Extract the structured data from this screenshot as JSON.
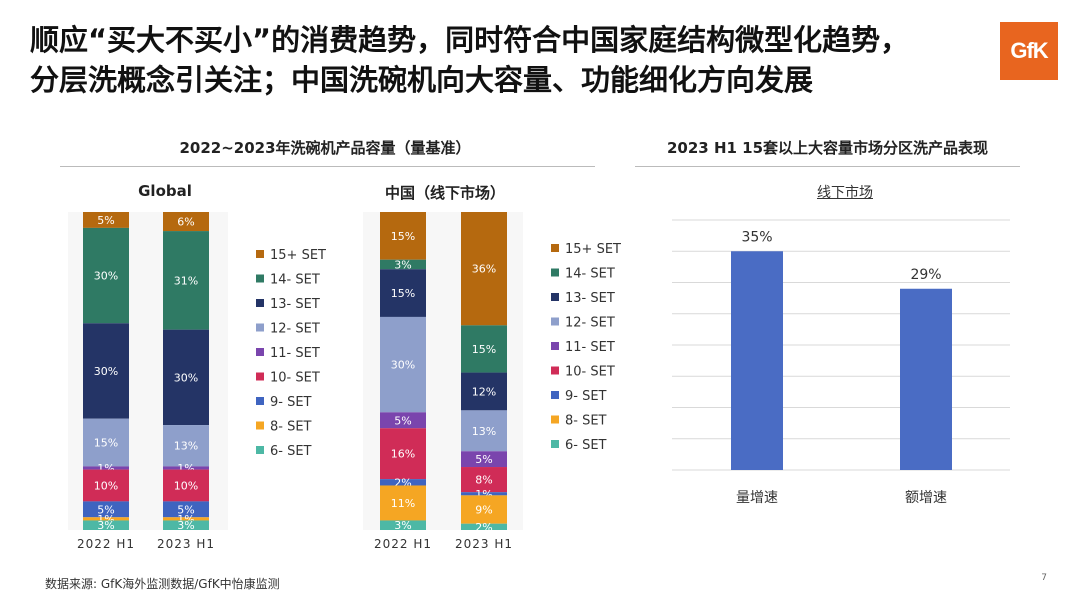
{
  "title": {
    "line1": "顺应“买大不买小”的消费趋势，同时符合中国家庭结构微型化趋势，",
    "line2": "分层洗概念引关注；中国洗碗机向大容量、功能细化方向发展"
  },
  "logo_text": "GfK",
  "left_section_title": "2022~2023年洗碗机产品容量（量基准）",
  "right_section_title": "2023 H1 15套以上大容量市场分区洗产品表现",
  "legend": [
    {
      "label": "15+ SET",
      "color": "#b5690f"
    },
    {
      "label": "14- SET",
      "color": "#2f7a64"
    },
    {
      "label": "13- SET",
      "color": "#243466"
    },
    {
      "label": "12- SET",
      "color": "#8e9fcb"
    },
    {
      "label": "11- SET",
      "color": "#7a45ad"
    },
    {
      "label": "10- SET",
      "color": "#d02c57"
    },
    {
      "label": "9- SET",
      "color": "#3f64c0"
    },
    {
      "label": "8- SET",
      "color": "#f5a623"
    },
    {
      "label": "6- SET",
      "color": "#4db8a5"
    }
  ],
  "source": "数据来源: GfK海外监测数据/GfK中怡康监测",
  "page_number": "7",
  "chart_data": [
    {
      "type": "bar",
      "stacked": true,
      "title": "Global",
      "categories": [
        "2022 H1",
        "2023 H1"
      ],
      "series": [
        {
          "name": "15+ SET",
          "values": [
            5,
            6
          ],
          "labels": [
            "5%",
            "6%"
          ]
        },
        {
          "name": "14- SET",
          "values": [
            30,
            31
          ],
          "labels": [
            "30%",
            "31%"
          ]
        },
        {
          "name": "13- SET",
          "values": [
            30,
            30
          ],
          "labels": [
            "30%",
            "30%"
          ]
        },
        {
          "name": "12- SET",
          "values": [
            15,
            13
          ],
          "labels": [
            "15%",
            "13%"
          ]
        },
        {
          "name": "11- SET",
          "values": [
            1,
            1
          ],
          "labels": [
            "1%",
            "1%"
          ]
        },
        {
          "name": "10- SET",
          "values": [
            10,
            10
          ],
          "labels": [
            "10%",
            "10%"
          ]
        },
        {
          "name": "9- SET",
          "values": [
            5,
            5
          ],
          "labels": [
            "5%",
            "5%"
          ]
        },
        {
          "name": "8- SET",
          "values": [
            1,
            1
          ],
          "labels": [
            "1%",
            "1%"
          ]
        },
        {
          "name": "6- SET",
          "values": [
            3,
            3
          ],
          "labels": [
            "3%",
            "3%"
          ]
        }
      ]
    },
    {
      "type": "bar",
      "stacked": true,
      "title": "中国（线下市场）",
      "categories": [
        "2022 H1",
        "2023 H1"
      ],
      "series": [
        {
          "name": "15+ SET",
          "values": [
            15,
            36
          ],
          "labels": [
            "15%",
            "36%"
          ]
        },
        {
          "name": "14- SET",
          "values": [
            3,
            15
          ],
          "labels": [
            "3%",
            "15%"
          ]
        },
        {
          "name": "13- SET",
          "values": [
            15,
            12
          ],
          "labels": [
            "15%",
            "12%"
          ]
        },
        {
          "name": "12- SET",
          "values": [
            30,
            13
          ],
          "labels": [
            "30%",
            "13%"
          ]
        },
        {
          "name": "11- SET",
          "values": [
            5,
            5
          ],
          "labels": [
            "5%",
            "5%"
          ]
        },
        {
          "name": "10- SET",
          "values": [
            16,
            8
          ],
          "labels": [
            "16%",
            "8%"
          ]
        },
        {
          "name": "9- SET",
          "values": [
            2,
            1
          ],
          "labels": [
            "2%",
            "1%"
          ]
        },
        {
          "name": "8- SET",
          "values": [
            11,
            9
          ],
          "labels": [
            "11%",
            "9%"
          ]
        },
        {
          "name": "6- SET",
          "values": [
            3,
            2
          ],
          "labels": [
            "3%",
            "2%"
          ]
        }
      ]
    },
    {
      "type": "bar",
      "title": "线下市场",
      "categories": [
        "量增速",
        "额增速"
      ],
      "values": [
        35,
        29
      ],
      "labels": [
        "35%",
        "29%"
      ],
      "color": "#4a6cc4",
      "ylim": [
        0,
        40
      ],
      "grid": true
    }
  ]
}
